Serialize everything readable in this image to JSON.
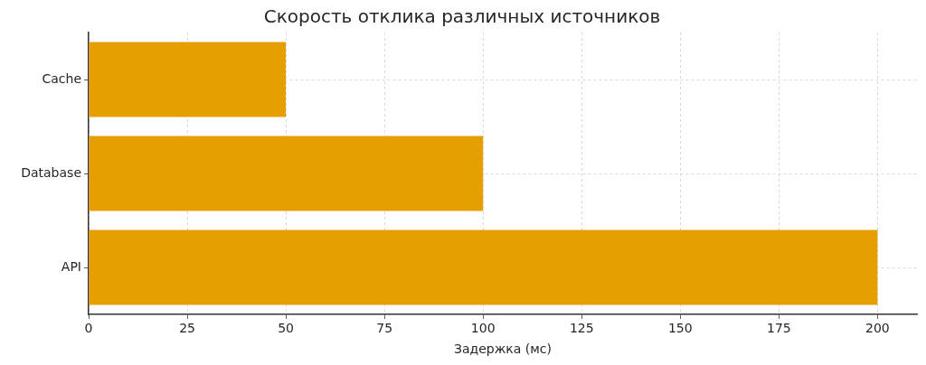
{
  "chart_data": {
    "type": "bar",
    "orientation": "horizontal",
    "title": "Скорость отклика различных источников",
    "xlabel": "Задержка (мс)",
    "categories": [
      "Cache",
      "Database",
      "API"
    ],
    "values": [
      50,
      100,
      200
    ],
    "color": "#e69f00",
    "xlim": [
      0,
      210
    ],
    "xticks": [
      0,
      25,
      50,
      75,
      100,
      125,
      150,
      175,
      200
    ],
    "grid": true
  }
}
